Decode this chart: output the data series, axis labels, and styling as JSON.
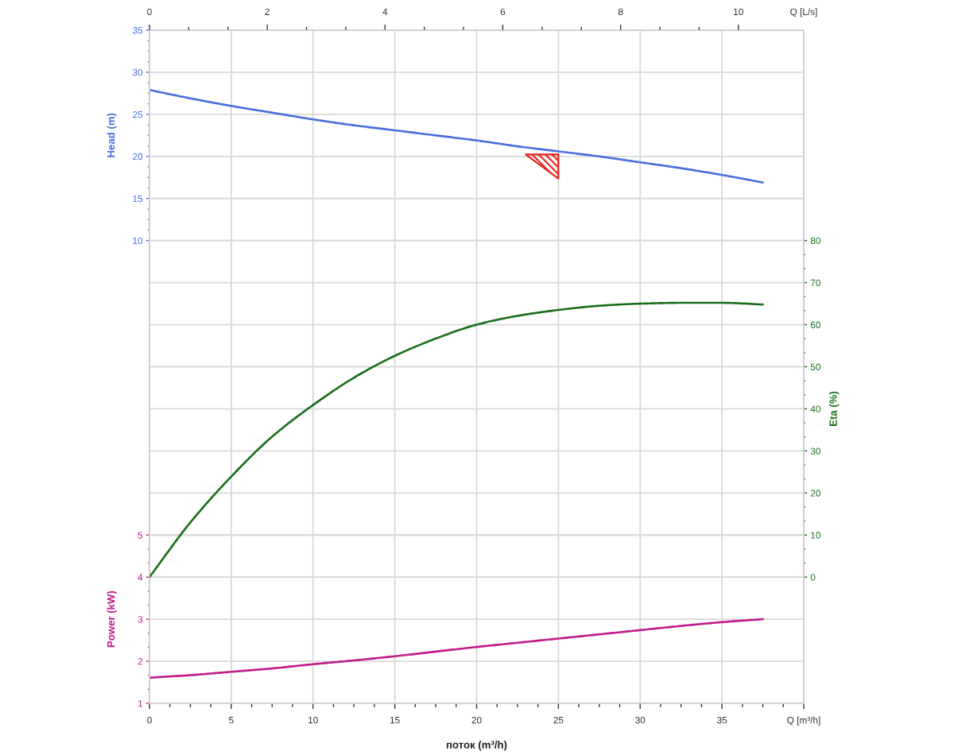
{
  "chart_data": {
    "type": "line",
    "xlabel": "поток (m³/h)",
    "x2label": "Q [L/s]",
    "ylabel": "Head (m)",
    "y2label": "Eta (%)",
    "y3label": "Power (kW)",
    "x": [
      0,
      2.5,
      5,
      7.5,
      10,
      12.5,
      15,
      17.5,
      20,
      22.5,
      25,
      27.5,
      30,
      32.5,
      35,
      37.5
    ],
    "xlim": [
      0,
      40
    ],
    "xticks": [
      0,
      5,
      10,
      15,
      20,
      25,
      30,
      35,
      {
        "value": 40,
        "label": "Q [m³/h]"
      }
    ],
    "x2lim": [
      0,
      11.11
    ],
    "x2ticks": [
      0,
      2,
      4,
      6,
      8,
      10
    ],
    "ylim": [
      -45,
      35
    ],
    "yticks": [
      10,
      15,
      20,
      25,
      30,
      35
    ],
    "y2lim": [
      -30,
      130
    ],
    "y2ticks": [
      0,
      10,
      20,
      30,
      40,
      50,
      60,
      70,
      80
    ],
    "y3lim": [
      1,
      17
    ],
    "y3ticks": [
      1,
      2,
      3,
      4,
      5
    ],
    "grid": true,
    "marker": "none",
    "line_style": "solid",
    "series": [
      {
        "color": "#4a6fdc",
        "axis": "y",
        "values": [
          27.9,
          26.9,
          26.0,
          25.2,
          24.4,
          23.7,
          23.1,
          22.5,
          21.9,
          21.2,
          20.6,
          20.0,
          19.3,
          18.6,
          17.8,
          16.9
        ]
      },
      {
        "color": "#1b6e1b",
        "axis": "y2",
        "values": [
          0,
          13.0,
          23.9,
          33.4,
          40.9,
          47.4,
          52.6,
          56.7,
          60.0,
          62.1,
          63.5,
          64.5,
          65.0,
          65.2,
          65.2,
          64.8
        ]
      },
      {
        "color": "#c21a8c",
        "axis": "y3",
        "values": [
          1.61,
          1.67,
          1.75,
          1.83,
          1.93,
          2.02,
          2.12,
          2.23,
          2.34,
          2.44,
          2.54,
          2.64,
          2.74,
          2.84,
          2.93,
          3.0
        ]
      },
      {
        "type": "scatter",
        "marker": "triangle",
        "color": "#e8231f",
        "axis": "y",
        "x": [
          24.0
        ],
        "values": [
          18.8
        ]
      }
    ]
  }
}
